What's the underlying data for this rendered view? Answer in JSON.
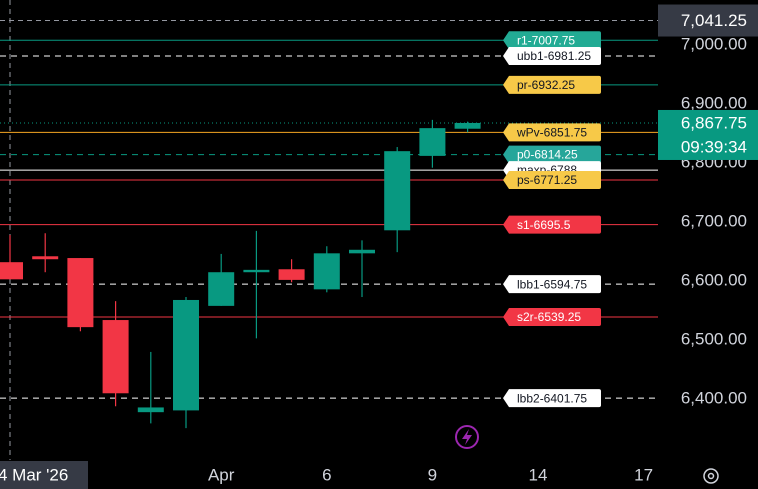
{
  "chart_data": {
    "type": "candlestick",
    "categories": [
      null,
      null,
      null,
      null,
      null,
      null,
      "Apr",
      null,
      null,
      "6",
      null,
      null,
      "9",
      null,
      null,
      "14",
      null,
      null,
      "17"
    ],
    "open": [
      6632,
      6642,
      6639,
      6534,
      6378,
      6381,
      6558,
      6615,
      6620,
      6586,
      6647,
      6686,
      6812,
      6858,
      null,
      null,
      null,
      null,
      null
    ],
    "high": [
      6678,
      6681,
      6639,
      6566,
      6480,
      6573,
      6646,
      6685,
      6637,
      6659,
      6669,
      6827,
      6873,
      6870,
      null,
      null,
      null,
      null,
      null
    ],
    "low": [
      6603,
      6615,
      6515,
      6388,
      6359,
      6351,
      6558,
      6503,
      6598,
      6581,
      6573,
      6649,
      6792,
      6852,
      null,
      null,
      null,
      null,
      null
    ],
    "close": [
      6603,
      6637,
      6522,
      6410,
      6386,
      6568,
      6615,
      6619,
      6602,
      6647,
      6653,
      6820,
      6859,
      6867.75,
      null,
      null,
      null,
      null,
      null
    ],
    "up_color": "#089981",
    "down_color": "#f23645",
    "ylim": [
      6297,
      7076
    ],
    "yticks": [
      {
        "value": 6400,
        "label": "6,400.00"
      },
      {
        "value": 6500,
        "label": "6,500.00"
      },
      {
        "value": 6600,
        "label": "6,600.00"
      },
      {
        "value": 6700,
        "label": "6,700.00"
      },
      {
        "value": 6800,
        "label": "6,800.00"
      },
      {
        "value": 6900,
        "label": "6,900.00"
      },
      {
        "value": 7000,
        "label": "7,000.00"
      }
    ],
    "grid": false,
    "levels": [
      {
        "label": "r1-7007.75",
        "value": 7007.75,
        "line_color": "#089981",
        "dash": false,
        "label_bg": "#22ab94",
        "label_text": "#ffffff"
      },
      {
        "label": "ubb1-6981.25",
        "value": 6981.25,
        "line_color": "#ffffff",
        "dash": true,
        "label_bg": "#ffffff",
        "label_text": "#131722"
      },
      {
        "label": "pr-6932.25",
        "value": 6932.25,
        "line_color": "#089981",
        "dash": false,
        "label_bg": "#f7c948",
        "label_text": "#131722"
      },
      {
        "label": "p0-6814.25",
        "value": 6814.25,
        "line_color": "#089981",
        "dash": true,
        "label_bg": "#26a69a",
        "label_text": "#ffffff"
      },
      {
        "label": "maxp-6788",
        "value": 6788,
        "line_color": "#ffffff",
        "dash": false,
        "label_bg": "#ffffff",
        "label_text": "#131722"
      },
      {
        "label": "wPv-6851.75",
        "value": 6851.75,
        "line_color": "#f5a623",
        "dash": false,
        "label_bg": "#f7c948",
        "label_text": "#131722"
      },
      {
        "label": "ps-6771.25",
        "value": 6771.25,
        "line_color": "#f23645",
        "dash": false,
        "label_bg": "#f7c948",
        "label_text": "#131722"
      },
      {
        "label": "s1-6695.5",
        "value": 6695.5,
        "line_color": "#f23645",
        "dash": false,
        "label_bg": "#f23645",
        "label_text": "#ffffff"
      },
      {
        "label": "lbb1-6594.75",
        "value": 6594.75,
        "line_color": "#ffffff",
        "dash": true,
        "label_bg": "#ffffff",
        "label_text": "#131722"
      },
      {
        "label": "s2r-6539.25",
        "value": 6539.25,
        "line_color": "#f23645",
        "dash": false,
        "label_bg": "#f23645",
        "label_text": "#ffffff"
      },
      {
        "label": "lbb2-6401.75",
        "value": 6401.75,
        "line_color": "#ffffff",
        "dash": true,
        "label_bg": "#ffffff",
        "label_text": "#131722"
      }
    ],
    "last_price": {
      "value": 6867.75,
      "label": "6,867.75"
    },
    "countdown": "09:39:34",
    "crosshair": {
      "price": {
        "value": 7041.25,
        "label": "7,041.25"
      },
      "date": "4 Mar '26"
    }
  }
}
